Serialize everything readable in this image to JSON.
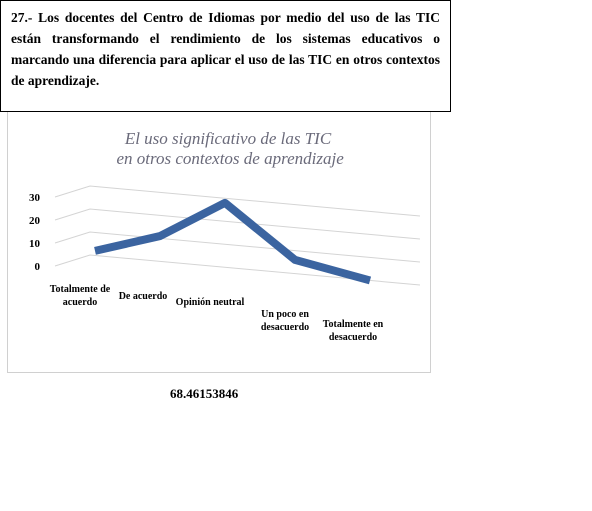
{
  "question": "27.- Los docentes del Centro de Idiomas por medio del uso de las TIC están transformando el rendimiento de los sistemas educativos o marcando una diferencia para aplicar el uso de las TIC en otros contextos de aprendizaje.",
  "chart_data": {
    "type": "line3d",
    "title": "El uso significativo de las TIC en otros contextos de aprendizaje",
    "categories": [
      "Totalmente de acuerdo",
      "De acuerdo",
      "Opinión neutral",
      "Un poco en desacuerdo",
      "Totalmente en desacuerdo"
    ],
    "values": [
      2,
      11,
      28,
      6,
      0
    ],
    "color": "#3b64a0",
    "ylim": [
      0,
      30
    ],
    "yticks": [
      0,
      10,
      20,
      30
    ],
    "grid": true
  },
  "result": 68.46153846
}
